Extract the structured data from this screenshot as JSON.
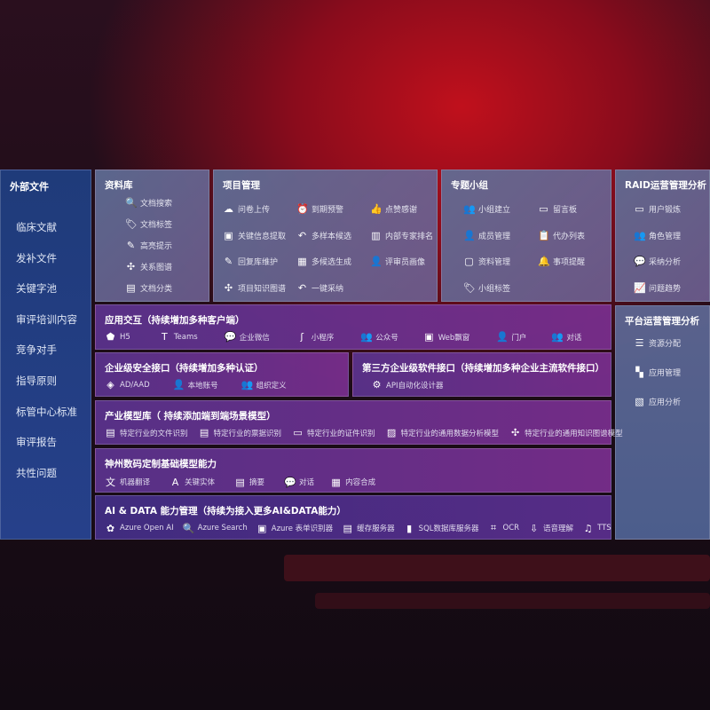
{
  "sidebar": {
    "title": "外部文件",
    "items": [
      "临床文献",
      "发补文件",
      "关键字池",
      "审评培训内容",
      "竞争对手",
      "指导原则",
      "标管中心标准",
      "审评报告",
      "共性问题"
    ]
  },
  "library": {
    "title": "资料库",
    "items": [
      {
        "icon": "doc-search-icon",
        "label": "文档搜索"
      },
      {
        "icon": "tag-icon",
        "label": "文档标签"
      },
      {
        "icon": "pen-icon",
        "label": "高亮提示"
      },
      {
        "icon": "graph-icon",
        "label": "关系图谱"
      },
      {
        "icon": "doc-list-icon",
        "label": "文档分类"
      }
    ]
  },
  "project": {
    "title": "项目管理",
    "items": [
      {
        "icon": "cloud-upload-icon",
        "label": "问卷上传"
      },
      {
        "icon": "alarm-icon",
        "label": "到期预警"
      },
      {
        "icon": "thumbs-up-icon",
        "label": "点赞感谢"
      },
      {
        "icon": "window-icon",
        "label": "关键信息提取"
      },
      {
        "icon": "reply-icon",
        "label": "多样本候选"
      },
      {
        "icon": "rank-icon",
        "label": "内部专家排名"
      },
      {
        "icon": "edit-icon",
        "label": "回复库维护"
      },
      {
        "icon": "puzzle-icon",
        "label": "多候选生成"
      },
      {
        "icon": "user-icon",
        "label": "评审员画像"
      },
      {
        "icon": "graph-icon",
        "label": "项目知识图谱"
      },
      {
        "icon": "reply-icon",
        "label": "一键采纳"
      }
    ]
  },
  "group": {
    "title": "专题小组",
    "items": [
      {
        "icon": "users-icon",
        "label": "小组建立"
      },
      {
        "icon": "bbs-icon",
        "label": "留言板"
      },
      {
        "icon": "user-add-icon",
        "label": "成员管理"
      },
      {
        "icon": "clipboard-icon",
        "label": "代办列表"
      },
      {
        "icon": "folder-icon",
        "label": "资料管理"
      },
      {
        "icon": "bell-icon",
        "label": "事项提醒"
      },
      {
        "icon": "tag-icon",
        "label": "小组标签"
      }
    ]
  },
  "raid": {
    "title": "RAID运营管理分析",
    "items": [
      {
        "icon": "id-card-icon",
        "label": "用户锻炼"
      },
      {
        "icon": "users-icon",
        "label": "角色管理"
      },
      {
        "icon": "qa-icon",
        "label": "采纳分析"
      },
      {
        "icon": "trend-icon",
        "label": "问题趋势"
      }
    ]
  },
  "platform": {
    "title": "平台运营管理分析",
    "items": [
      {
        "icon": "list-icon",
        "label": "资源分配"
      },
      {
        "icon": "apps-icon",
        "label": "应用管理"
      },
      {
        "icon": "chart-icon",
        "label": "应用分析"
      }
    ]
  },
  "app": {
    "title": "应用交互（持续增加多种客户端）",
    "items": [
      {
        "icon": "h5-icon",
        "label": "H5"
      },
      {
        "icon": "teams-icon",
        "label": "Teams"
      },
      {
        "icon": "wecom-icon",
        "label": "企业微信"
      },
      {
        "icon": "miniprogram-icon",
        "label": "小程序"
      },
      {
        "icon": "users-icon",
        "label": "公众号"
      },
      {
        "icon": "window-icon",
        "label": "Web飘窗"
      },
      {
        "icon": "portal-icon",
        "label": "门户"
      },
      {
        "icon": "chat-users-icon",
        "label": "对话"
      }
    ]
  },
  "security": {
    "title": "企业级安全接口（持续增加多种认证）",
    "items": [
      {
        "icon": "aad-icon",
        "label": "AD/AAD"
      },
      {
        "icon": "user-icon",
        "label": "本地账号"
      },
      {
        "icon": "org-icon",
        "label": "组织定义"
      }
    ]
  },
  "third": {
    "title": "第三方企业级软件接口（持续增加多种企业主流软件接口）",
    "items": [
      {
        "icon": "gear-icon",
        "label": "API自动化设计器"
      }
    ]
  },
  "industry": {
    "title": "产业模型库（ 持续添加端到端场景模型）",
    "items": [
      {
        "icon": "doc-icon",
        "label": "特定行业的文件识别"
      },
      {
        "icon": "receipt-icon",
        "label": "特定行业的票据识别"
      },
      {
        "icon": "id-card-icon",
        "label": "特定行业的证件识别"
      },
      {
        "icon": "image-icon",
        "label": "特定行业的通用数据分析模型"
      },
      {
        "icon": "graph-icon",
        "label": "特定行业的通用知识图谱模型"
      }
    ]
  },
  "base": {
    "title": "神州数码定制基础模型能力",
    "items": [
      {
        "icon": "translate-icon",
        "label": "机器翻译"
      },
      {
        "icon": "entity-icon",
        "label": "关键实体"
      },
      {
        "icon": "doc-icon",
        "label": "摘要"
      },
      {
        "icon": "chat-icon",
        "label": "对话"
      },
      {
        "icon": "puzzle-icon",
        "label": "内容合成"
      }
    ]
  },
  "ai": {
    "title": "AI & DATA 能力管理（持续为接入更多AI&DATA能力）",
    "items": [
      {
        "icon": "openai-icon",
        "label": "Azure Open AI"
      },
      {
        "icon": "search-icon",
        "label": "Azure Search"
      },
      {
        "icon": "form-icon",
        "label": "Azure 表单识别器"
      },
      {
        "icon": "cache-icon",
        "label": "缓存服务器"
      },
      {
        "icon": "database-icon",
        "label": "SQL数据库服务器"
      },
      {
        "icon": "ocr-icon",
        "label": "OCR"
      },
      {
        "icon": "speech-icon",
        "label": "语音理解"
      },
      {
        "icon": "tts-icon",
        "label": "TTS"
      }
    ]
  }
}
